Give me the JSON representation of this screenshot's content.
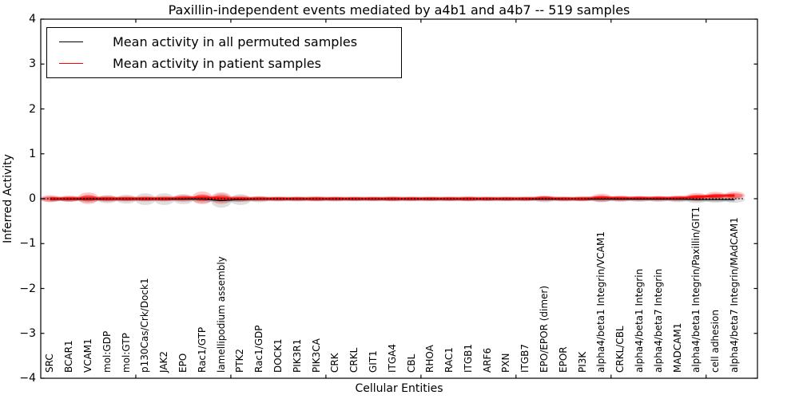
{
  "chart_data": {
    "type": "area",
    "subtype": "violin-band-plot",
    "title": "Paxillin-independent events mediated by a4b1 and a4b7 -- 519 samples",
    "xlabel": "Cellular Entities",
    "ylabel": "Inferred Activity",
    "ylim": [
      -4,
      4
    ],
    "ytick_labels": [
      "−4",
      "−3",
      "−2",
      "−1",
      "0",
      "1",
      "2",
      "3",
      "4"
    ],
    "ytick_values": [
      -4,
      -3,
      -2,
      -1,
      0,
      1,
      2,
      3,
      4
    ],
    "xtick_positions": [
      5,
      10,
      15,
      20,
      25,
      30,
      35
    ],
    "grid": false,
    "legend_position": "upper-left",
    "zero_line": {
      "value": 0,
      "style": "dotted",
      "color": "#000000"
    },
    "colors": {
      "permuted_line": "#000000",
      "permuted_band": "#808080",
      "patient_line": "#ff0000",
      "patient_band": "#ff0000"
    },
    "legend": [
      {
        "label": "Mean activity in all permuted samples",
        "color": "#000000"
      },
      {
        "label": "Mean activity in patient samples",
        "color": "#ff0000"
      }
    ],
    "entities": [
      "SRC",
      "BCAR1",
      "VCAM1",
      "mol:GDP",
      "mol:GTP",
      "p130Cas/Crk/Dock1",
      "JAK2",
      "EPO",
      "Rac1/GTP",
      "lamellipodium assembly",
      "PTK2",
      "Rac1/GDP",
      "DOCK1",
      "PIK3R1",
      "PIK3CA",
      "CRK",
      "CRKL",
      "GIT1",
      "ITGA4",
      "CBL",
      "RHOA",
      "RAC1",
      "ITGB1",
      "ARF6",
      "PXN",
      "ITGB7",
      "EPO/EPOR (dimer)",
      "EPOR",
      "PI3K",
      "alpha4/beta1 Integrin/VCAM1",
      "CRKL/CBL",
      "alpha4/beta1 Integrin",
      "alpha4/beta7 Integrin",
      "MADCAM1",
      "alpha4/beta1 Integrin/Paxillin/GIT1",
      "cell adhesion",
      "alpha4/beta7 Integrin/MAdCAM1"
    ],
    "series": [
      {
        "name": "Mean activity in all permuted samples",
        "means": [
          -0.01,
          -0.01,
          -0.01,
          -0.01,
          -0.01,
          -0.01,
          -0.01,
          -0.01,
          -0.01,
          -0.04,
          -0.02,
          -0.01,
          -0.01,
          -0.01,
          -0.01,
          -0.01,
          -0.01,
          -0.01,
          -0.01,
          -0.01,
          -0.01,
          -0.01,
          -0.01,
          -0.01,
          -0.01,
          -0.01,
          -0.01,
          -0.01,
          -0.01,
          -0.01,
          -0.01,
          -0.01,
          -0.01,
          -0.01,
          -0.02,
          -0.02,
          -0.02
        ],
        "band_half_widths": [
          0.06,
          0.06,
          0.08,
          0.09,
          0.1,
          0.13,
          0.13,
          0.11,
          0.09,
          0.16,
          0.12,
          0.07,
          0.05,
          0.05,
          0.05,
          0.05,
          0.04,
          0.04,
          0.05,
          0.04,
          0.04,
          0.04,
          0.05,
          0.04,
          0.04,
          0.04,
          0.07,
          0.05,
          0.05,
          0.07,
          0.06,
          0.06,
          0.06,
          0.07,
          0.08,
          0.07,
          0.07
        ]
      },
      {
        "name": "Mean activity in patient samples",
        "means": [
          0.0,
          0.0,
          0.01,
          0.0,
          0.0,
          0.0,
          0.0,
          0.01,
          0.02,
          0.01,
          0.0,
          0.0,
          0.0,
          0.0,
          0.0,
          0.0,
          0.0,
          0.0,
          0.0,
          0.0,
          0.0,
          0.0,
          0.0,
          0.0,
          0.0,
          0.0,
          0.01,
          0.0,
          0.0,
          0.02,
          0.01,
          0.01,
          0.01,
          0.01,
          0.04,
          0.06,
          0.07
        ],
        "band_half_widths": [
          0.08,
          0.07,
          0.13,
          0.07,
          0.06,
          0.06,
          0.06,
          0.08,
          0.14,
          0.13,
          0.07,
          0.05,
          0.04,
          0.04,
          0.05,
          0.04,
          0.04,
          0.04,
          0.05,
          0.04,
          0.04,
          0.04,
          0.05,
          0.04,
          0.04,
          0.04,
          0.06,
          0.04,
          0.05,
          0.09,
          0.06,
          0.05,
          0.05,
          0.06,
          0.09,
          0.09,
          0.09
        ]
      }
    ]
  }
}
